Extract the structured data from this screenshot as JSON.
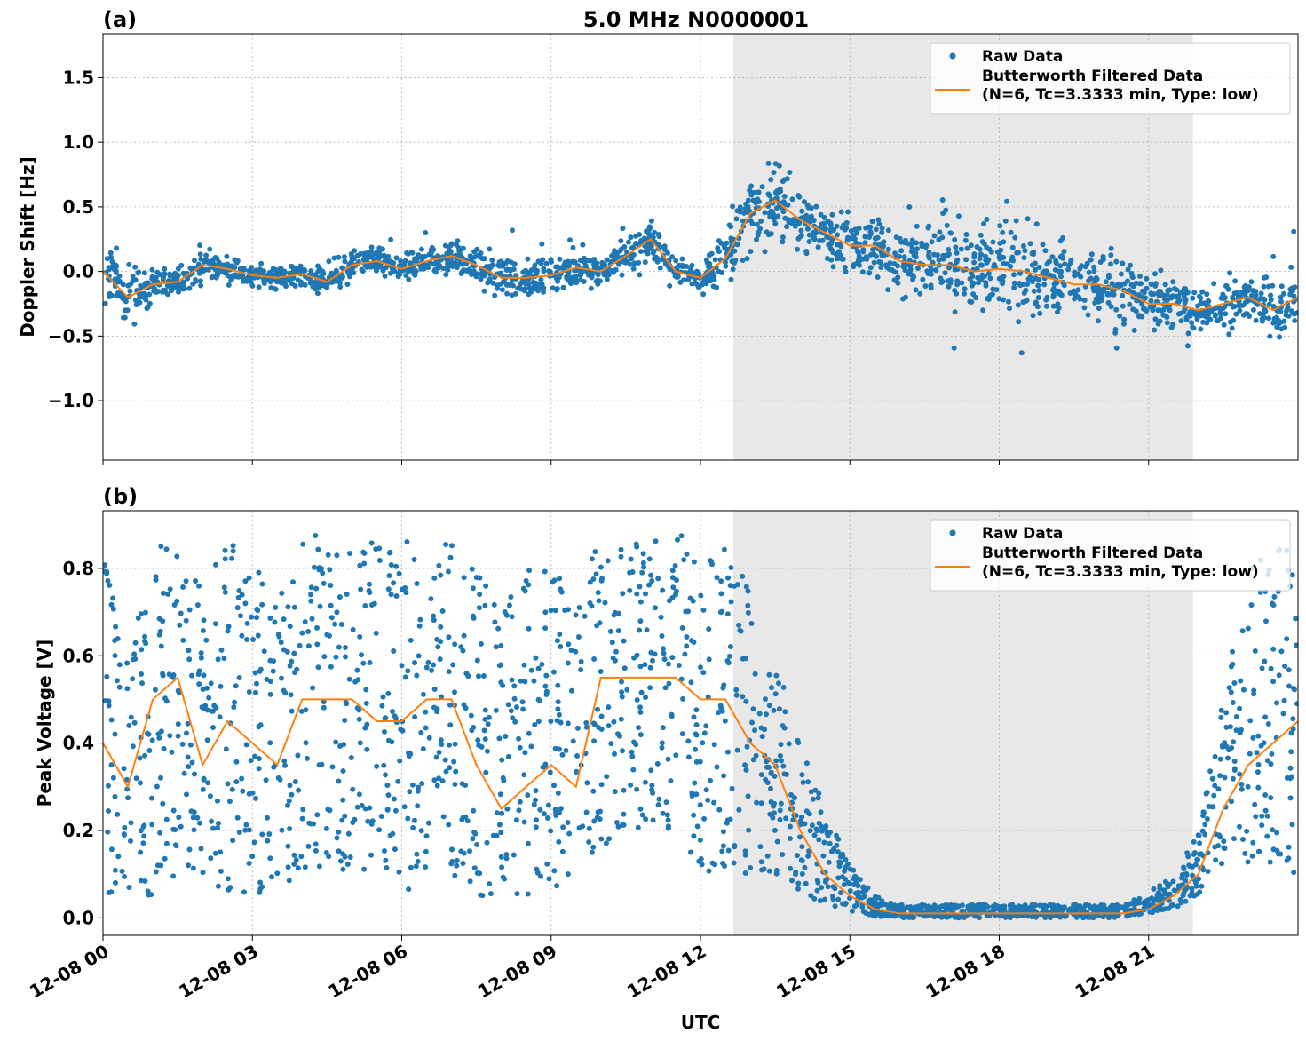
{
  "chart_data": [
    {
      "type": "scatter",
      "panel_label": "(a)",
      "title": "5.0 MHz N0000001",
      "xlabel": "",
      "ylabel": "Doppler Shift [Hz]",
      "xlim_hours": [
        0,
        24
      ],
      "ylim": [
        -1.46,
        1.84
      ],
      "yticks": [
        -1.0,
        -0.5,
        0.0,
        0.5,
        1.0,
        1.5
      ],
      "ytick_labels": [
        "−1.0",
        "−0.5",
        "0.0",
        "0.5",
        "1.0",
        "1.5"
      ],
      "grid": true,
      "shaded_interval_hours": [
        12.66,
        21.89
      ],
      "legend": {
        "placement": "top-right",
        "entries": [
          "Raw Data",
          "Butterworth Filtered Data",
          "(N=6, Tc=3.3333 min, Type: low)"
        ]
      },
      "filtered_step_hours": 0.5,
      "filtered": [
        0.0,
        -0.2,
        -0.1,
        -0.08,
        0.05,
        0.02,
        -0.03,
        -0.05,
        -0.02,
        -0.08,
        0.05,
        0.08,
        0.02,
        0.08,
        0.12,
        0.05,
        -0.05,
        -0.05,
        -0.03,
        0.03,
        0.0,
        0.12,
        0.25,
        0.0,
        -0.05,
        0.1,
        0.45,
        0.55,
        0.4,
        0.3,
        0.2,
        0.2,
        0.08,
        0.05,
        0.05,
        0.0,
        0.02,
        0.0,
        -0.05,
        -0.1,
        -0.1,
        -0.15,
        -0.25,
        -0.25,
        -0.3,
        -0.25,
        -0.2,
        -0.3,
        -0.2
      ],
      "raw_spread": [
        0.3,
        0.35,
        0.2,
        0.15,
        0.15,
        0.15,
        0.12,
        0.12,
        0.12,
        0.15,
        0.15,
        0.15,
        0.15,
        0.15,
        0.2,
        0.15,
        0.25,
        0.2,
        0.15,
        0.2,
        0.15,
        0.2,
        0.25,
        0.15,
        0.15,
        0.3,
        0.4,
        0.4,
        0.35,
        0.3,
        0.3,
        0.3,
        0.4,
        0.45,
        0.45,
        0.45,
        0.5,
        0.5,
        0.5,
        0.45,
        0.4,
        0.4,
        0.3,
        0.3,
        0.25,
        0.25,
        0.25,
        0.3,
        0.3
      ]
    },
    {
      "type": "scatter",
      "panel_label": "(b)",
      "title": "",
      "xlabel": "UTC",
      "ylabel": "Peak Voltage [V]",
      "xlim_hours": [
        0,
        24
      ],
      "ylim": [
        -0.04,
        0.932
      ],
      "yticks": [
        0.0,
        0.2,
        0.4,
        0.6,
        0.8
      ],
      "ytick_labels": [
        "0.0",
        "0.2",
        "0.4",
        "0.6",
        "0.8"
      ],
      "xtick_hours": [
        0,
        3,
        6,
        9,
        12,
        15,
        18,
        21
      ],
      "xtick_labels": [
        "12-08 00",
        "12-08 03",
        "12-08 06",
        "12-08 09",
        "12-08 12",
        "12-08 15",
        "12-08 18",
        "12-08 21"
      ],
      "grid": true,
      "shaded_interval_hours": [
        12.66,
        21.89
      ],
      "legend": {
        "placement": "top-right",
        "entries": [
          "Raw Data",
          "Butterworth Filtered Data",
          "(N=6, Tc=3.3333 min, Type: low)"
        ]
      },
      "filtered_step_hours": 0.5,
      "filtered": [
        0.4,
        0.3,
        0.5,
        0.55,
        0.35,
        0.45,
        0.4,
        0.35,
        0.5,
        0.5,
        0.5,
        0.45,
        0.45,
        0.5,
        0.5,
        0.35,
        0.25,
        0.3,
        0.35,
        0.3,
        0.55,
        0.55,
        0.55,
        0.55,
        0.5,
        0.5,
        0.4,
        0.35,
        0.2,
        0.1,
        0.05,
        0.02,
        0.01,
        0.01,
        0.01,
        0.01,
        0.01,
        0.01,
        0.01,
        0.01,
        0.01,
        0.01,
        0.02,
        0.05,
        0.1,
        0.25,
        0.35,
        0.4,
        0.45
      ],
      "raw_low": [
        0.05,
        0.05,
        0.05,
        0.1,
        0.05,
        0.05,
        0.05,
        0.05,
        0.1,
        0.1,
        0.1,
        0.1,
        0.05,
        0.1,
        0.1,
        0.05,
        0.05,
        0.05,
        0.05,
        0.05,
        0.15,
        0.2,
        0.2,
        0.2,
        0.1,
        0.1,
        0.1,
        0.1,
        0.05,
        0.03,
        0.01,
        0.0,
        0.0,
        0.0,
        0.0,
        0.0,
        0.0,
        0.0,
        0.0,
        0.0,
        0.0,
        0.0,
        0.01,
        0.02,
        0.05,
        0.1,
        0.1,
        0.1,
        0.1
      ],
      "raw_high": [
        0.85,
        0.6,
        0.85,
        0.88,
        0.8,
        0.88,
        0.85,
        0.75,
        0.88,
        0.88,
        0.88,
        0.86,
        0.86,
        0.87,
        0.86,
        0.8,
        0.7,
        0.8,
        0.8,
        0.75,
        0.88,
        0.88,
        0.88,
        0.88,
        0.88,
        0.85,
        0.75,
        0.6,
        0.4,
        0.25,
        0.12,
        0.05,
        0.03,
        0.03,
        0.03,
        0.03,
        0.03,
        0.03,
        0.03,
        0.03,
        0.03,
        0.03,
        0.06,
        0.1,
        0.2,
        0.5,
        0.8,
        0.85,
        0.85
      ]
    }
  ],
  "colors": {
    "raw": "#1f77b4",
    "filtered": "#ff7f0e",
    "shade": "#e8e8e8",
    "grid": "#b0b0b0"
  }
}
